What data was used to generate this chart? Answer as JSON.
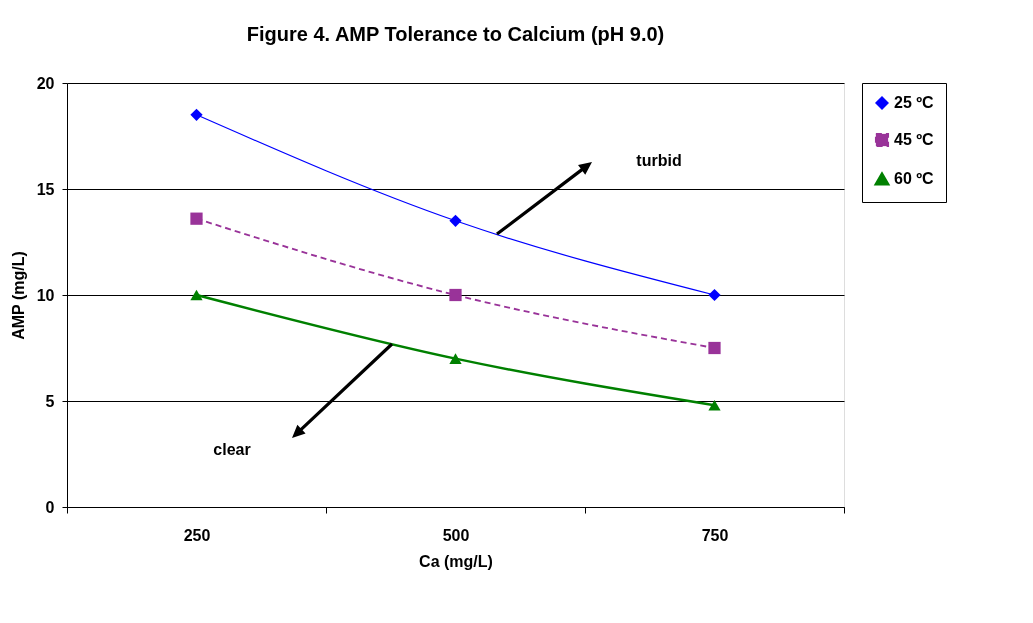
{
  "chart_data": {
    "type": "line",
    "title": "Figure 4.  AMP Tolerance to Calcium (pH 9.0)",
    "xlabel": "Ca (mg/L)",
    "ylabel": "AMP (mg/L)",
    "categories": [
      "250",
      "500",
      "750"
    ],
    "series": [
      {
        "name": "25 ºC",
        "color": "#0000ff",
        "values": [
          18.5,
          13.5,
          10.0
        ],
        "marker": "diamond",
        "line_style": "solid"
      },
      {
        "name": "45 ºC",
        "color": "#993399",
        "values": [
          13.6,
          10.0,
          7.5
        ],
        "marker": "square",
        "line_style": "dashed"
      },
      {
        "name": "60 ºC",
        "color": "#008000",
        "values": [
          10.0,
          7.0,
          4.8
        ],
        "marker": "triangle",
        "line_style": "solid"
      }
    ],
    "ylim": [
      0,
      20
    ],
    "yticks": [
      0,
      5,
      10,
      15,
      20
    ],
    "grid": "y",
    "legend": "right",
    "annotations": [
      "turbid",
      "clear"
    ]
  }
}
